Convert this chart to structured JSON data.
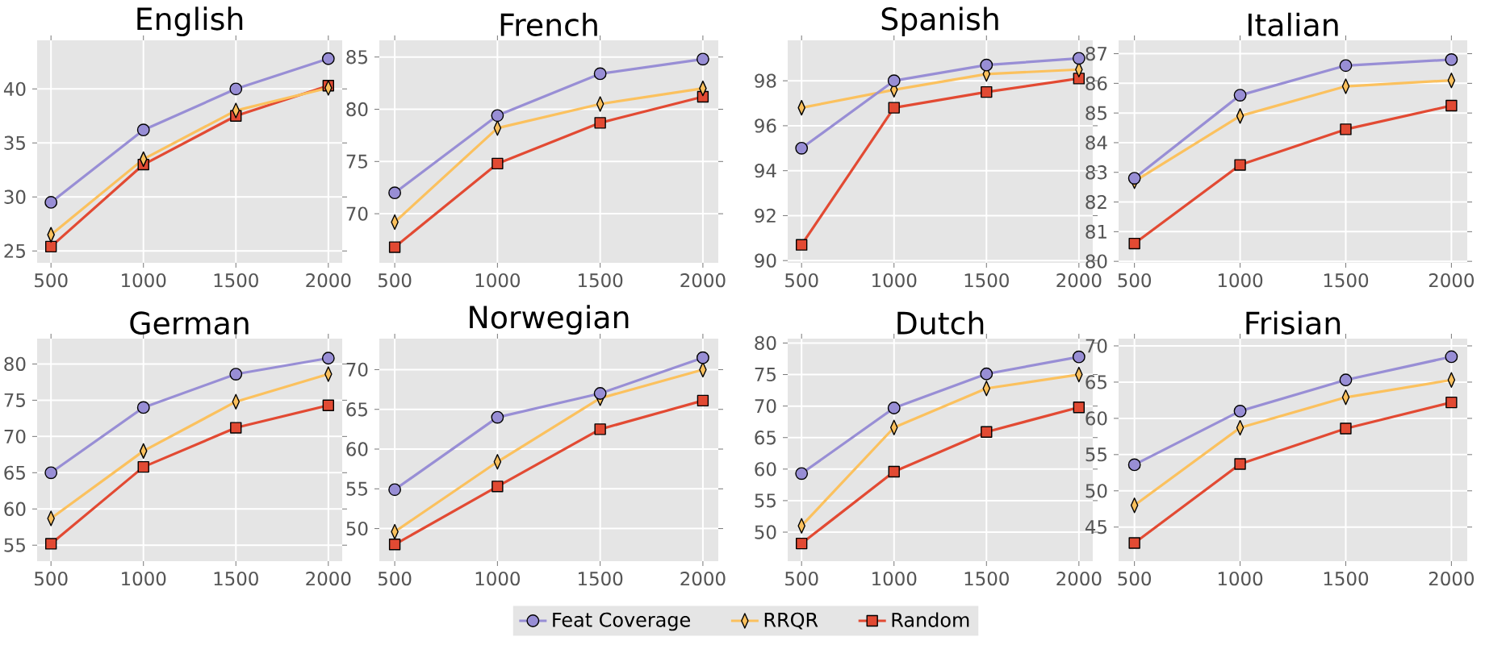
{
  "chart_data": [
    {
      "type": "line",
      "title": "English",
      "x": [
        500,
        1000,
        1500,
        2000
      ],
      "xlim": [
        425,
        2075
      ],
      "xticks": [
        500,
        1000,
        1500,
        2000
      ],
      "ylim": [
        23.9,
        44.5
      ],
      "yticks": [
        25,
        30,
        35,
        40
      ],
      "grid": true,
      "series": [
        {
          "color": "#988ed5",
          "marker": "circle",
          "values": [
            29.5,
            36.2,
            40.0,
            42.8
          ]
        },
        {
          "color": "#fbc15e",
          "marker": "diamond",
          "values": [
            26.5,
            33.5,
            38.0,
            40.1
          ]
        },
        {
          "color": "#e24a33",
          "marker": "square",
          "values": [
            25.4,
            33.0,
            37.5,
            40.3
          ]
        }
      ]
    },
    {
      "type": "line",
      "title": "French",
      "x": [
        500,
        1000,
        1500,
        2000
      ],
      "xlim": [
        425,
        2075
      ],
      "xticks": [
        500,
        1000,
        1500,
        2000
      ],
      "ylim": [
        65.3,
        86.6
      ],
      "yticks": [
        70,
        75,
        80,
        85
      ],
      "grid": true,
      "series": [
        {
          "color": "#988ed5",
          "marker": "circle",
          "values": [
            72.0,
            79.4,
            83.4,
            84.8
          ]
        },
        {
          "color": "#fbc15e",
          "marker": "diamond",
          "values": [
            69.2,
            78.2,
            80.5,
            82.0
          ]
        },
        {
          "color": "#e24a33",
          "marker": "square",
          "values": [
            66.8,
            74.8,
            78.7,
            81.2
          ]
        }
      ]
    },
    {
      "type": "line",
      "title": "Spanish",
      "x": [
        500,
        1000,
        1500,
        2000
      ],
      "xlim": [
        425,
        2075
      ],
      "xticks": [
        500,
        1000,
        1500,
        2000
      ],
      "ylim": [
        89.9,
        99.8
      ],
      "yticks": [
        90,
        92,
        94,
        96,
        98
      ],
      "grid": true,
      "series": [
        {
          "color": "#988ed5",
          "marker": "circle",
          "values": [
            95.0,
            98.0,
            98.7,
            99.0
          ]
        },
        {
          "color": "#fbc15e",
          "marker": "diamond",
          "values": [
            96.8,
            97.6,
            98.3,
            98.5
          ]
        },
        {
          "color": "#e24a33",
          "marker": "square",
          "values": [
            90.7,
            96.8,
            97.5,
            98.1
          ]
        }
      ]
    },
    {
      "type": "line",
      "title": "Italian",
      "x": [
        500,
        1000,
        1500,
        2000
      ],
      "xlim": [
        425,
        2075
      ],
      "xticks": [
        500,
        1000,
        1500,
        2000
      ],
      "ylim": [
        79.95,
        87.45
      ],
      "yticks": [
        80,
        81,
        82,
        83,
        84,
        85,
        86,
        87
      ],
      "grid": true,
      "series": [
        {
          "color": "#988ed5",
          "marker": "circle",
          "values": [
            82.8,
            85.6,
            86.6,
            86.8
          ]
        },
        {
          "color": "#fbc15e",
          "marker": "diamond",
          "values": [
            82.7,
            84.9,
            85.9,
            86.1
          ]
        },
        {
          "color": "#e24a33",
          "marker": "square",
          "values": [
            80.6,
            83.25,
            84.45,
            85.25
          ]
        }
      ]
    },
    {
      "type": "line",
      "title": "German",
      "x": [
        500,
        1000,
        1500,
        2000
      ],
      "xlim": [
        425,
        2075
      ],
      "xticks": [
        500,
        1000,
        1500,
        2000
      ],
      "ylim": [
        52.8,
        83.5
      ],
      "yticks": [
        55,
        60,
        65,
        70,
        75,
        80
      ],
      "grid": true,
      "series": [
        {
          "color": "#988ed5",
          "marker": "circle",
          "values": [
            65.0,
            74.0,
            78.6,
            80.8
          ]
        },
        {
          "color": "#fbc15e",
          "marker": "diamond",
          "values": [
            58.7,
            68.0,
            74.8,
            78.6
          ]
        },
        {
          "color": "#e24a33",
          "marker": "square",
          "values": [
            55.2,
            65.8,
            71.2,
            74.3
          ]
        }
      ]
    },
    {
      "type": "line",
      "title": "Norwegian",
      "x": [
        500,
        1000,
        1500,
        2000
      ],
      "xlim": [
        425,
        2075
      ],
      "xticks": [
        500,
        1000,
        1500,
        2000
      ],
      "ylim": [
        45.9,
        73.9
      ],
      "yticks": [
        50,
        55,
        60,
        65,
        70
      ],
      "grid": true,
      "series": [
        {
          "color": "#988ed5",
          "marker": "circle",
          "values": [
            54.9,
            64.0,
            67.0,
            71.5
          ]
        },
        {
          "color": "#fbc15e",
          "marker": "diamond",
          "values": [
            49.6,
            58.4,
            66.4,
            70.0
          ]
        },
        {
          "color": "#e24a33",
          "marker": "square",
          "values": [
            48.0,
            55.3,
            62.5,
            66.1
          ]
        }
      ]
    },
    {
      "type": "line",
      "title": "Dutch",
      "x": [
        500,
        1000,
        1500,
        2000
      ],
      "xlim": [
        425,
        2075
      ],
      "xticks": [
        500,
        1000,
        1500,
        2000
      ],
      "ylim": [
        45.4,
        80.7
      ],
      "yticks": [
        50,
        55,
        60,
        65,
        70,
        75,
        80
      ],
      "grid": true,
      "series": [
        {
          "color": "#988ed5",
          "marker": "circle",
          "values": [
            59.3,
            69.7,
            75.1,
            77.8
          ]
        },
        {
          "color": "#fbc15e",
          "marker": "diamond",
          "values": [
            51.0,
            66.6,
            72.8,
            75.0
          ]
        },
        {
          "color": "#e24a33",
          "marker": "square",
          "values": [
            48.2,
            59.6,
            65.9,
            69.8
          ]
        }
      ]
    },
    {
      "type": "line",
      "title": "Frisian",
      "x": [
        500,
        1000,
        1500,
        2000
      ],
      "xlim": [
        425,
        2075
      ],
      "xticks": [
        500,
        1000,
        1500,
        2000
      ],
      "ylim": [
        40.3,
        71.0
      ],
      "yticks": [
        45,
        50,
        55,
        60,
        65,
        70
      ],
      "grid": true,
      "legend": "bottom",
      "series": [
        {
          "name": "Feat Coverage",
          "color": "#988ed5",
          "marker": "circle",
          "values": [
            53.6,
            61.0,
            65.3,
            68.5
          ]
        },
        {
          "name": "RRQR",
          "color": "#fbc15e",
          "marker": "diamond",
          "values": [
            48.0,
            58.7,
            62.9,
            65.3
          ]
        },
        {
          "name": "Random",
          "color": "#e24a33",
          "marker": "square",
          "values": [
            42.8,
            53.7,
            58.6,
            62.2
          ]
        }
      ]
    }
  ]
}
